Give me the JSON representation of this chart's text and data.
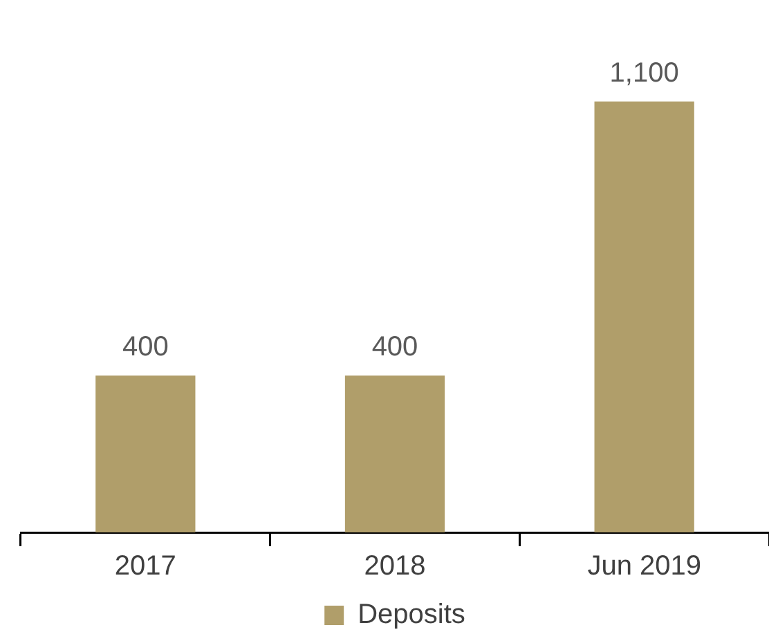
{
  "chart_data": {
    "type": "bar",
    "categories": [
      "2017",
      "2018",
      "Jun 2019"
    ],
    "series": [
      {
        "name": "Deposits",
        "color": "#b09e6a",
        "values": [
          400,
          400,
          1100
        ],
        "value_labels": [
          "400",
          "400",
          "1,100"
        ]
      }
    ],
    "legend": "bottom",
    "grid": false
  }
}
